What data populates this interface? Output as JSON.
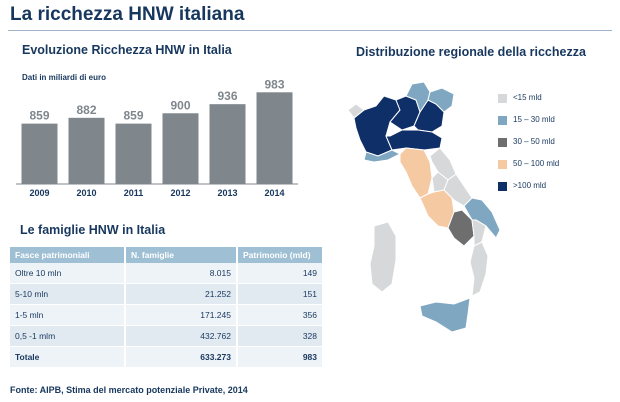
{
  "page_title": "La ricchezza HNW italiana",
  "chart_data": {
    "type": "bar",
    "title": "Evoluzione Ricchezza HNW in Italia",
    "subtitle": "Dati in miliardi di euro",
    "categories": [
      "2009",
      "2010",
      "2011",
      "2012",
      "2013",
      "2014"
    ],
    "values": [
      859,
      882,
      859,
      900,
      936,
      983
    ],
    "ylim": [
      620,
      1000
    ],
    "bar_color": "#7f868c",
    "grid": false
  },
  "families": {
    "title": "Le famiglie HNW in Italia",
    "headers": [
      "Fasce patrimoniali",
      "N. famiglie",
      "Patrimonio (mld)"
    ],
    "rows": [
      [
        "Oltre 10 mln",
        "8.015",
        "149"
      ],
      [
        "5-10 mln",
        "21.252",
        "151"
      ],
      [
        "1-5 mln",
        "171.245",
        "356"
      ],
      [
        "0,5 -1 mlm",
        "432.762",
        "328"
      ]
    ],
    "total": [
      "Totale",
      "633.273",
      "983"
    ]
  },
  "map": {
    "title": "Distribuzione regionale della ricchezza",
    "legend": [
      {
        "label": "<15 mld",
        "color": "#d6d8da"
      },
      {
        "label": "15 – 30 mld",
        "color": "#7fa7c1"
      },
      {
        "label": "30 – 50 mld",
        "color": "#6e6e6e"
      },
      {
        "label": "50 – 100 mld",
        "color": "#f5c9a2"
      },
      {
        "label": ">100 mld",
        "color": "#0f2f68"
      }
    ]
  },
  "source": "Fonte: AIPB, Stima del mercato potenziale Private, 2014"
}
